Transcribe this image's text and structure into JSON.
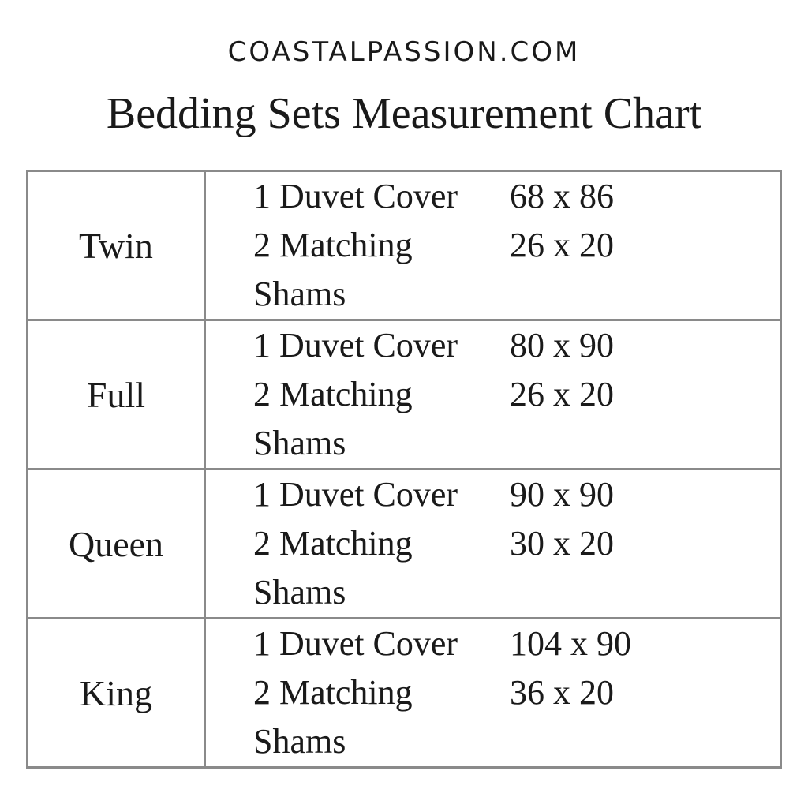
{
  "site": "COASTALPASSION.COM",
  "title": "Bedding Sets Measurement Chart",
  "rows": [
    {
      "size": "Twin",
      "items": [
        {
          "label": "1 Duvet Cover",
          "dims": "68 x 86"
        },
        {
          "label": "2 Matching Shams",
          "dims": "26 x 20"
        }
      ]
    },
    {
      "size": "Full",
      "items": [
        {
          "label": "1 Duvet Cover",
          "dims": "80 x 90"
        },
        {
          "label": "2 Matching Shams",
          "dims": "26 x 20"
        }
      ]
    },
    {
      "size": "Queen",
      "items": [
        {
          "label": "1 Duvet Cover",
          "dims": "90 x 90"
        },
        {
          "label": "2 Matching Shams",
          "dims": "30 x 20"
        }
      ]
    },
    {
      "size": "King",
      "items": [
        {
          "label": "1 Duvet Cover",
          "dims": "104 x 90"
        },
        {
          "label": "2 Matching Shams",
          "dims": "36 x 20"
        }
      ]
    }
  ]
}
